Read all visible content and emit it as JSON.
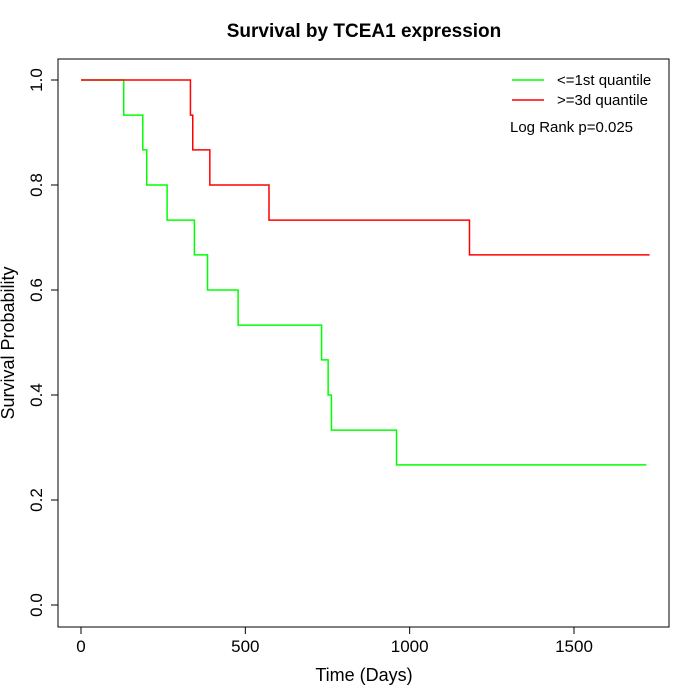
{
  "chart_data": {
    "type": "line",
    "step": true,
    "title": "Survival by TCEA1 expression",
    "xlabel": "Time (Days)",
    "ylabel": "Survival Probability",
    "xlim": [
      0,
      1750
    ],
    "ylim": [
      0,
      1
    ],
    "xticks": [
      0,
      500,
      1000,
      1500
    ],
    "xtick_labels": [
      "0",
      "500",
      "1000",
      "1500"
    ],
    "yticks": [
      0,
      0.2,
      0.4,
      0.6,
      0.8,
      1.0
    ],
    "ytick_labels": [
      "0.0",
      "0.2",
      "0.4",
      "0.6",
      "0.8",
      "1.0"
    ],
    "legend_position": "top-right",
    "annotation": "Log Rank p=0.025",
    "series": [
      {
        "name": "<=1st quantile",
        "color": "#00ff00",
        "x": [
          0,
          130,
          188,
          200,
          262,
          345,
          385,
          478,
          732,
          752,
          762,
          960,
          1720
        ],
        "y": [
          1.0,
          0.933,
          0.867,
          0.8,
          0.733,
          0.667,
          0.6,
          0.533,
          0.467,
          0.4,
          0.333,
          0.267,
          0.267
        ]
      },
      {
        "name": ">=3d quantile",
        "color": "#ff0000",
        "x": [
          0,
          333,
          340,
          392,
          572,
          1182,
          1730
        ],
        "y": [
          1.0,
          0.933,
          0.867,
          0.8,
          0.733,
          0.667,
          0.667
        ]
      }
    ]
  }
}
